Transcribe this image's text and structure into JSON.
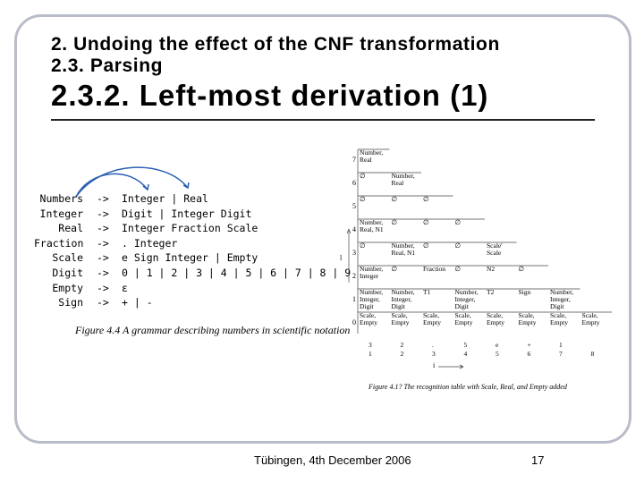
{
  "header": {
    "line1": "2. Undoing the effect of the CNF transformation",
    "line2": "2.3. Parsing"
  },
  "title": "2.3.2. Left-most derivation (1)",
  "grammar": {
    "rules": [
      {
        "lhs": "Numbers",
        "arrow": "->",
        "rhs": "Integer | Real"
      },
      {
        "lhs": "Integer",
        "arrow": "->",
        "rhs": "Digit | Integer Digit"
      },
      {
        "lhs": "Real",
        "arrow": "->",
        "rhs": "Integer Fraction Scale"
      },
      {
        "lhs": "Fraction",
        "arrow": "->",
        "rhs": ". Integer"
      },
      {
        "lhs": "Scale",
        "arrow": "->",
        "rhs": "e Sign Integer | Empty"
      },
      {
        "lhs": "Digit",
        "arrow": "->",
        "rhs": "0 | 1 | 2 | 3 | 4 | 5 | 6 | 7 | 8 | 9"
      },
      {
        "lhs": "Empty",
        "arrow": "->",
        "rhs": "ε"
      },
      {
        "lhs": "Sign",
        "arrow": "->",
        "rhs": "+ | -"
      }
    ],
    "caption": "Figure 4.4  A grammar describing numbers in scientific notation"
  },
  "table": {
    "row_labels": [
      "7",
      "6",
      "5",
      "4",
      "3",
      "2",
      "1",
      "0"
    ],
    "l_label": "l",
    "i_label": "i",
    "cells": [
      {
        "row": 7,
        "col": 1,
        "text": "Number, Real"
      },
      {
        "row": 6,
        "col": 1,
        "text": "∅"
      },
      {
        "row": 6,
        "col": 2,
        "text": "Number, Real"
      },
      {
        "row": 5,
        "col": 1,
        "text": "∅"
      },
      {
        "row": 5,
        "col": 2,
        "text": "∅"
      },
      {
        "row": 5,
        "col": 3,
        "text": "∅"
      },
      {
        "row": 4,
        "col": 1,
        "text": "Number, Real, N1"
      },
      {
        "row": 4,
        "col": 2,
        "text": "∅"
      },
      {
        "row": 4,
        "col": 3,
        "text": "∅"
      },
      {
        "row": 4,
        "col": 4,
        "text": "∅"
      },
      {
        "row": 3,
        "col": 1,
        "text": "∅"
      },
      {
        "row": 3,
        "col": 2,
        "text": "Number, Real, N1"
      },
      {
        "row": 3,
        "col": 3,
        "text": "∅"
      },
      {
        "row": 3,
        "col": 4,
        "text": "∅"
      },
      {
        "row": 3,
        "col": 5,
        "text": "Scale' Scale"
      },
      {
        "row": 2,
        "col": 1,
        "text": "Number, Integer"
      },
      {
        "row": 2,
        "col": 2,
        "text": "∅"
      },
      {
        "row": 2,
        "col": 3,
        "text": "Fraction"
      },
      {
        "row": 2,
        "col": 4,
        "text": "∅"
      },
      {
        "row": 2,
        "col": 5,
        "text": "N2"
      },
      {
        "row": 2,
        "col": 6,
        "text": "∅"
      },
      {
        "row": 1,
        "col": 1,
        "text": "Number, Integer, Digit"
      },
      {
        "row": 1,
        "col": 2,
        "text": "Number, Integer, Digit"
      },
      {
        "row": 1,
        "col": 3,
        "text": "T1"
      },
      {
        "row": 1,
        "col": 4,
        "text": "Number, Integer, Digit"
      },
      {
        "row": 1,
        "col": 5,
        "text": "T2"
      },
      {
        "row": 1,
        "col": 6,
        "text": "Sign"
      },
      {
        "row": 1,
        "col": 7,
        "text": "Number, Integer, Digit"
      },
      {
        "row": 0,
        "col": 1,
        "text": "Scale, Empty"
      },
      {
        "row": 0,
        "col": 2,
        "text": "Scale, Empty"
      },
      {
        "row": 0,
        "col": 3,
        "text": "Scale, Empty"
      },
      {
        "row": 0,
        "col": 4,
        "text": "Scale, Empty"
      },
      {
        "row": 0,
        "col": 5,
        "text": "Scale, Empty"
      },
      {
        "row": 0,
        "col": 6,
        "text": "Scale, Empty"
      },
      {
        "row": 0,
        "col": 7,
        "text": "Scale, Empty"
      },
      {
        "row": 0,
        "col": 8,
        "text": "Scale, Empty"
      }
    ],
    "tokens": [
      "3",
      "2",
      ".",
      "5",
      "e",
      "+",
      "1",
      ""
    ],
    "positions": [
      "1",
      "2",
      "3",
      "4",
      "5",
      "6",
      "7",
      "8"
    ],
    "caption": "Figure 4.1?  The recognition table with Scale, Real, and Empty added"
  },
  "footer": {
    "location_date": "Tübingen, 4th December 2006",
    "page_number": "17"
  }
}
